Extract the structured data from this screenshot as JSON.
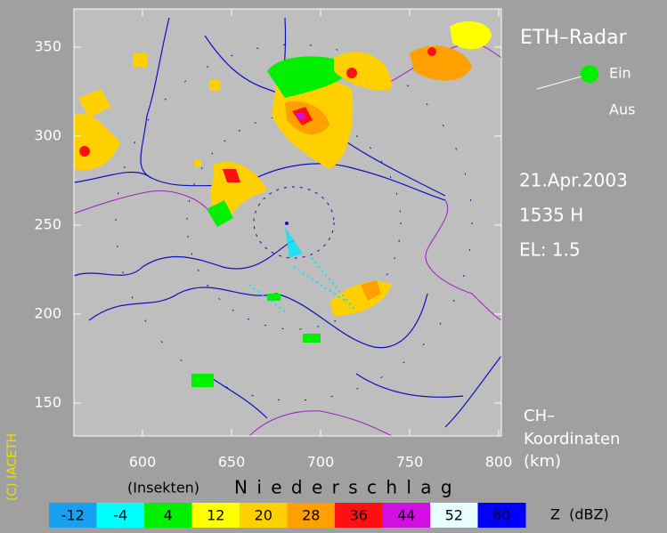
{
  "map": {
    "xlim": [
      561.5,
      801.5
    ],
    "ylim": [
      131.5,
      371.5
    ],
    "xticks": [
      600,
      650,
      700,
      750,
      800
    ],
    "yticks": [
      150,
      200,
      250,
      300,
      350
    ]
  },
  "title": "ETH–Radar",
  "status_on": "Ein",
  "status_off": "Aus",
  "date": "21.Apr.2003",
  "time": "1535 H",
  "elevation": "EL: 1.5",
  "coordinates_label": [
    "CH–",
    "Koordinaten",
    "(km)"
  ],
  "copyright": "(C) IACETH",
  "legend": {
    "insects_label": "(Insekten)",
    "precip_label": "N i e d e r s c h l a g",
    "unit_label": "Z  (dBZ)",
    "bins": [
      {
        "value": -12,
        "color": "#18a0f0"
      },
      {
        "value": -4,
        "color": "#00ffff"
      },
      {
        "value": 4,
        "color": "#00f000"
      },
      {
        "value": 12,
        "color": "#ffff00"
      },
      {
        "value": 20,
        "color": "#ffd000"
      },
      {
        "value": 28,
        "color": "#ffa000"
      },
      {
        "value": 36,
        "color": "#ff1010"
      },
      {
        "value": 44,
        "color": "#d010e0"
      },
      {
        "value": 52,
        "color": "#e8ffff"
      },
      {
        "value": 60,
        "color": "#0000ff"
      }
    ]
  }
}
